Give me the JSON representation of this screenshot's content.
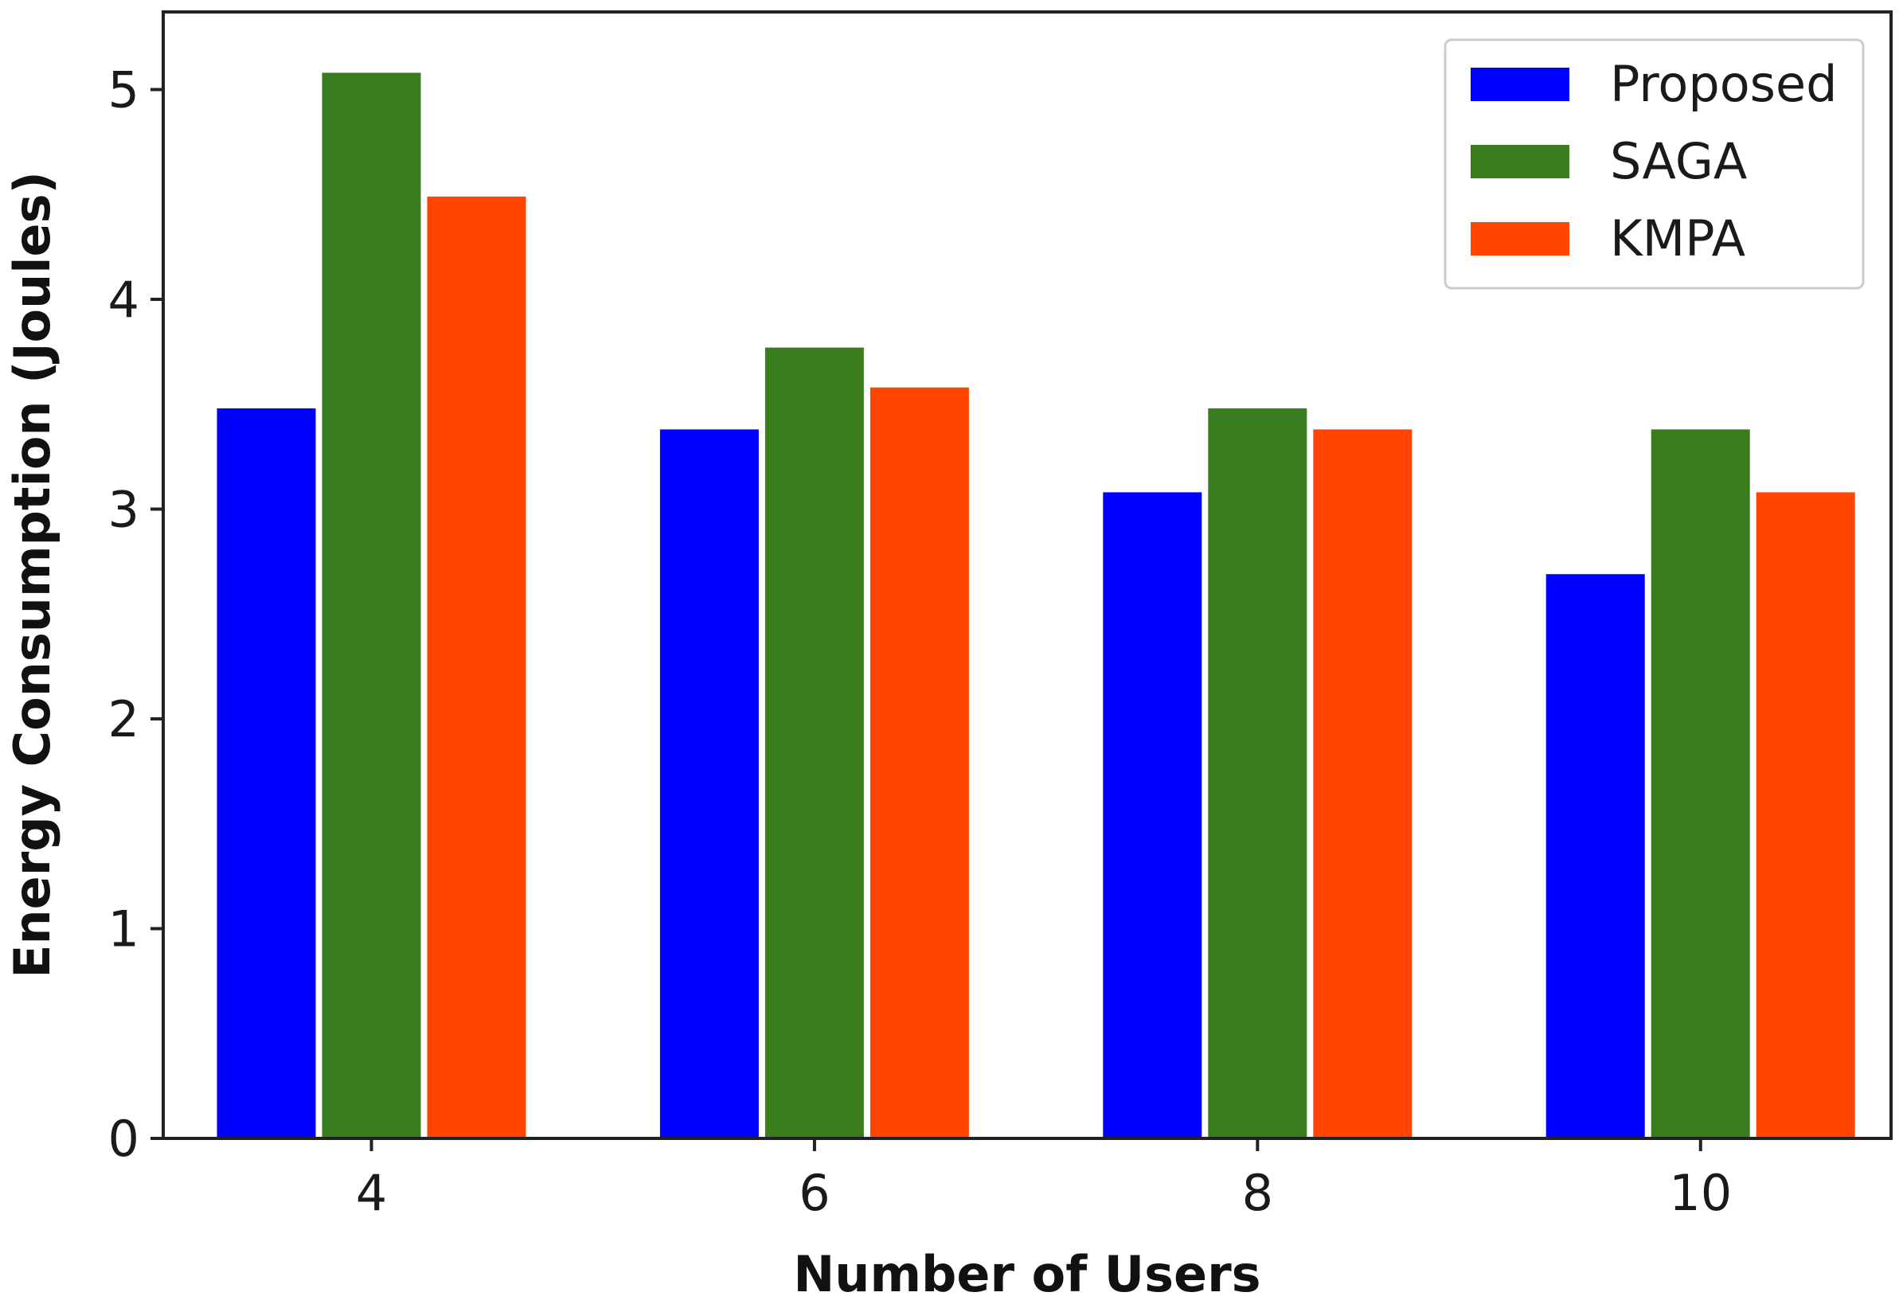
{
  "chart_data": {
    "type": "bar",
    "title": "",
    "xlabel": "Number of Users",
    "ylabel": "Energy Consumption (Joules)",
    "categories": [
      "4",
      "6",
      "8",
      "10"
    ],
    "series": [
      {
        "name": "Proposed",
        "color": "#0000ff",
        "values": [
          3.48,
          3.38,
          3.08,
          2.69
        ]
      },
      {
        "name": "SAGA",
        "color": "#3a7d1e",
        "values": [
          5.08,
          3.77,
          3.48,
          3.38
        ]
      },
      {
        "name": "KMPA",
        "color": "#ff4500",
        "values": [
          4.49,
          3.58,
          3.38,
          3.08
        ]
      }
    ],
    "ylim": [
      0,
      5.37
    ],
    "yticks": [
      "0",
      "1",
      "2",
      "3",
      "4",
      "5"
    ],
    "grid": false,
    "legend": "top-right"
  }
}
